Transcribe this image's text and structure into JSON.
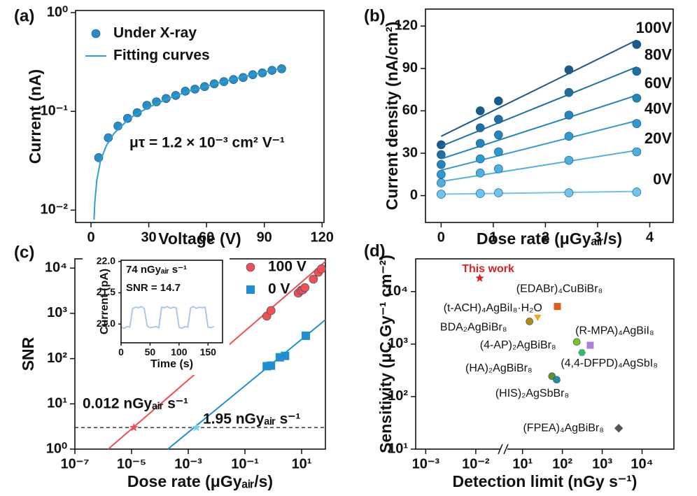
{
  "chart_data": [
    {
      "type": "scatter",
      "label": "(a)",
      "xlabel": "Voltage (V)",
      "ylabel": "Current (nA)",
      "xlim": [
        -8,
        121
      ],
      "ylim": [
        0.0075,
        1.05
      ],
      "yscale": "log",
      "xticks": [
        0,
        30,
        60,
        90,
        120
      ],
      "yticks": [
        {
          "value": 0.01,
          "label": "10⁻²"
        },
        {
          "value": 0.1,
          "label": "10⁻¹"
        },
        {
          "value": 1,
          "label": "10⁰"
        }
      ],
      "legend": "upper left",
      "annotation": "μτ = 1.2 × 10⁻³ cm² V⁻¹",
      "series": [
        {
          "name": "Under X-ray",
          "type": "scatter",
          "marker": "circle",
          "color": "#2a8cc4",
          "x": [
            4,
            9,
            14,
            19,
            24,
            29,
            34,
            39,
            44,
            49,
            54,
            59,
            64,
            69,
            74,
            79,
            84,
            89,
            94,
            99
          ],
          "values": [
            0.034,
            0.054,
            0.071,
            0.085,
            0.097,
            0.115,
            0.125,
            0.135,
            0.145,
            0.16,
            0.168,
            0.178,
            0.19,
            0.2,
            0.21,
            0.22,
            0.235,
            0.245,
            0.26,
            0.27
          ]
        },
        {
          "name": "Fitting curves",
          "type": "line",
          "color": "#2a9fd6",
          "x": [
            1.6,
            2,
            3,
            5,
            8,
            12,
            20,
            30,
            40,
            50,
            60,
            70,
            80,
            90,
            100
          ],
          "values": [
            0.008,
            0.012,
            0.02,
            0.032,
            0.045,
            0.06,
            0.085,
            0.11,
            0.135,
            0.158,
            0.18,
            0.203,
            0.226,
            0.25,
            0.275
          ]
        }
      ]
    },
    {
      "type": "scatter",
      "label": "(b)",
      "xlabel": "Dose rate (μGyₐᵢᵣ/s)",
      "ylabel": "Current density (nA/cm²)",
      "xlim": [
        -0.3,
        4.45
      ],
      "ylim": [
        -19,
        132
      ],
      "xticks": [
        0,
        1,
        2,
        3,
        4
      ],
      "yticks": [
        0,
        30,
        60,
        90,
        120
      ],
      "series": [
        {
          "name": "100V",
          "type": "scatter",
          "marker": "circle",
          "color": "#1b5a8a",
          "x": [
            0,
            0.75,
            1.1,
            2.45,
            3.75
          ],
          "values": [
            36,
            60,
            67,
            89,
            107
          ],
          "fit": {
            "x": [
              0,
              3.75
            ],
            "values": [
              42,
              110
            ]
          }
        },
        {
          "name": "80V",
          "type": "scatter",
          "marker": "circle",
          "color": "#1f6fa3",
          "x": [
            0,
            0.75,
            1.1,
            2.45,
            3.75
          ],
          "values": [
            29,
            48,
            54,
            73,
            88
          ],
          "fit": {
            "x": [
              0,
              3.75
            ],
            "values": [
              35,
              91
            ]
          }
        },
        {
          "name": "60V",
          "type": "scatter",
          "marker": "circle",
          "color": "#2484bd",
          "x": [
            0,
            0.75,
            1.1,
            2.45,
            3.75
          ],
          "values": [
            22,
            37,
            43,
            57,
            69
          ],
          "fit": {
            "x": [
              0,
              3.75
            ],
            "values": [
              26,
              71
            ]
          }
        },
        {
          "name": "40V",
          "type": "scatter",
          "marker": "circle",
          "color": "#2f9ad2",
          "x": [
            0,
            0.75,
            1.1,
            2.45,
            3.75
          ],
          "values": [
            15,
            26,
            31,
            42,
            51
          ],
          "fit": {
            "x": [
              0,
              3.75
            ],
            "values": [
              18,
              53
            ]
          }
        },
        {
          "name": "20V",
          "type": "scatter",
          "marker": "circle",
          "color": "#4fb0e0",
          "x": [
            0,
            0.75,
            1.1,
            2.45,
            3.75
          ],
          "values": [
            9,
            16,
            19,
            25,
            31
          ],
          "fit": {
            "x": [
              0,
              3.75
            ],
            "values": [
              10,
              32
            ]
          }
        },
        {
          "name": "0V",
          "type": "scatter",
          "marker": "circle",
          "color": "#6fc4ec",
          "x": [
            0,
            0.75,
            1.1,
            2.45,
            3.75
          ],
          "values": [
            1,
            1.5,
            2,
            2,
            2.5
          ],
          "fit": {
            "x": [
              0,
              3.75
            ],
            "values": [
              1,
              3
            ]
          }
        }
      ]
    },
    {
      "type": "scatter",
      "label": "(c)",
      "xlabel": "Dose rate (μGyₐᵢᵣ/s)",
      "ylabel": "SNR",
      "xscale": "log",
      "yscale": "log",
      "xlim": [
        1e-07,
        69
      ],
      "ylim": [
        1,
        16000
      ],
      "xticks": [
        {
          "value": 1e-07,
          "label": "10⁻⁷"
        },
        {
          "value": 1e-05,
          "label": "10⁻⁵"
        },
        {
          "value": 0.001,
          "label": "10⁻³"
        },
        {
          "value": 0.1,
          "label": "10⁻¹"
        },
        {
          "value": 10,
          "label": "10¹"
        }
      ],
      "yticks": [
        {
          "value": 1,
          "label": "10⁰"
        },
        {
          "value": 10,
          "label": "10¹"
        },
        {
          "value": 100,
          "label": "10²"
        },
        {
          "value": 1000,
          "label": "10³"
        },
        {
          "value": 10000,
          "label": "10⁴"
        }
      ],
      "legend": "upper right",
      "threshold": 3,
      "series": [
        {
          "name": "100 V",
          "type": "scatter",
          "marker": "circle",
          "color": "#f05050",
          "x": [
            0.59,
            0.83,
            7.6,
            9.5,
            11,
            13,
            26,
            39,
            50
          ],
          "values": [
            870,
            1150,
            2800,
            3200,
            3300,
            3700,
            5700,
            8100,
            9600
          ],
          "fit": {
            "x": [
              1.5e-06,
              69
            ],
            "values": [
              1,
              14000
            ]
          }
        },
        {
          "name": "0 V",
          "type": "scatter",
          "marker": "square",
          "color": "#1f8fd0",
          "x": [
            0.59,
            0.83,
            1.7,
            2.6,
            14
          ],
          "values": [
            68,
            70,
            107,
            115,
            320
          ],
          "fit": {
            "x": [
              0.00019,
              69
            ],
            "values": [
              1,
              720
            ]
          }
        }
      ],
      "annotations": [
        {
          "text": "0.012 nGyₐᵢᵣ s⁻¹",
          "x": 1.2e-05,
          "y": 3,
          "color": "#f05050",
          "marker": "star"
        },
        {
          "text": "1.95 nGyₐᵢᵣ s⁻¹",
          "x": 0.00195,
          "y": 3,
          "color": "#7fcbee",
          "marker": "star"
        }
      ],
      "inset": {
        "lines": [
          "74  nGyₐᵢᵣ s⁻¹",
          "SNR = 14.7"
        ],
        "xlabel": "Time (s)",
        "ylabel": "Current (pA)",
        "xlim": [
          0,
          175
        ],
        "ylim": [
          20.7,
          22.02
        ],
        "xticks": [
          0,
          50,
          100,
          150
        ],
        "yticks": [
          {
            "value": 21,
            "label": "21.0"
          },
          {
            "value": 21.5,
            "label": "21.5"
          },
          {
            "value": 22,
            "label": "22.0"
          }
        ],
        "color": "#a8c8ec",
        "x": [
          0,
          5,
          10,
          15,
          20,
          25,
          30,
          35,
          40,
          45,
          50,
          55,
          60,
          65,
          70,
          75,
          80,
          85,
          90,
          95,
          100,
          105,
          110,
          115,
          120,
          125,
          130,
          135,
          140,
          145,
          150,
          155,
          160
        ],
        "values": [
          20.95,
          20.93,
          20.96,
          20.95,
          21.25,
          21.27,
          21.26,
          21.28,
          21.25,
          20.97,
          20.94,
          20.95,
          20.96,
          20.94,
          21.27,
          21.26,
          21.28,
          21.25,
          21.27,
          21.26,
          20.95,
          20.93,
          20.96,
          20.95,
          21.26,
          21.28,
          21.25,
          21.27,
          21.26,
          21.27,
          20.95,
          20.94,
          20.96
        ]
      }
    },
    {
      "type": "scatter",
      "label": "(d)",
      "xlabel": "Detection limit (nGy s⁻¹)",
      "ylabel": "Sensitivity (μC Gy⁻¹ cm⁻²)",
      "xscale": "log",
      "yscale": "log",
      "xlim": [
        [
          0.00063,
          0.032
        ],
        [
          4,
          63000
        ]
      ],
      "ylim": [
        10,
        42000
      ],
      "xticks": [
        {
          "value": 0.001,
          "label": "10⁻³"
        },
        {
          "value": 0.01,
          "label": "10⁻²"
        },
        {
          "value": 10,
          "label": "10¹"
        },
        {
          "value": 100,
          "label": "10²"
        },
        {
          "value": 1000,
          "label": "10³"
        },
        {
          "value": 10000,
          "label": "10⁴"
        }
      ],
      "yticks": [
        {
          "value": 10,
          "label": "10¹"
        },
        {
          "value": 100,
          "label": "10²"
        },
        {
          "value": 1000,
          "label": "10³"
        },
        {
          "value": 10000,
          "label": "10⁴"
        }
      ],
      "points": [
        {
          "name": "This work",
          "x": 0.012,
          "y": 18000,
          "color": "#e02020",
          "marker": "star",
          "label_color": "#e02020"
        },
        {
          "name": "(EDABr)₄CuBiBr₈",
          "x": 75,
          "y": 5200,
          "color": "#e05a1a",
          "marker": "square"
        },
        {
          "name": "(t-ACH)₄AgBiI₈·H₂O",
          "x": 24,
          "y": 3300,
          "color": "#f5a623",
          "marker": "triangle"
        },
        {
          "name": "BDA₂AgBiBr₈",
          "x": 15,
          "y": 2700,
          "color": "#b8860b",
          "marker": "circle"
        },
        {
          "name": "(R-MPA)₄AgBiI₈",
          "x": 500,
          "y": 950,
          "color": "#b07de0",
          "marker": "square"
        },
        {
          "name": "(4-AP)₂AgBiBr₈",
          "x": 230,
          "y": 1100,
          "color": "#7cc21f",
          "marker": "circle"
        },
        {
          "name": "(4,4-DFPD)₄AgSbI₈",
          "x": 310,
          "y": 690,
          "color": "#3cb371",
          "marker": "hexagon"
        },
        {
          "name": "(HA)₂AgBiBr₈",
          "x": 55,
          "y": 245,
          "color": "#6b8e23",
          "marker": "circle"
        },
        {
          "name": "(HIS)₂AgSbBr₈",
          "x": 72,
          "y": 210,
          "color": "#1f8fa0",
          "marker": "circle"
        },
        {
          "name": "(FPEA)₄AgBiBr₈",
          "x": 2600,
          "y": 25,
          "color": "#555555",
          "marker": "diamond"
        }
      ]
    }
  ]
}
